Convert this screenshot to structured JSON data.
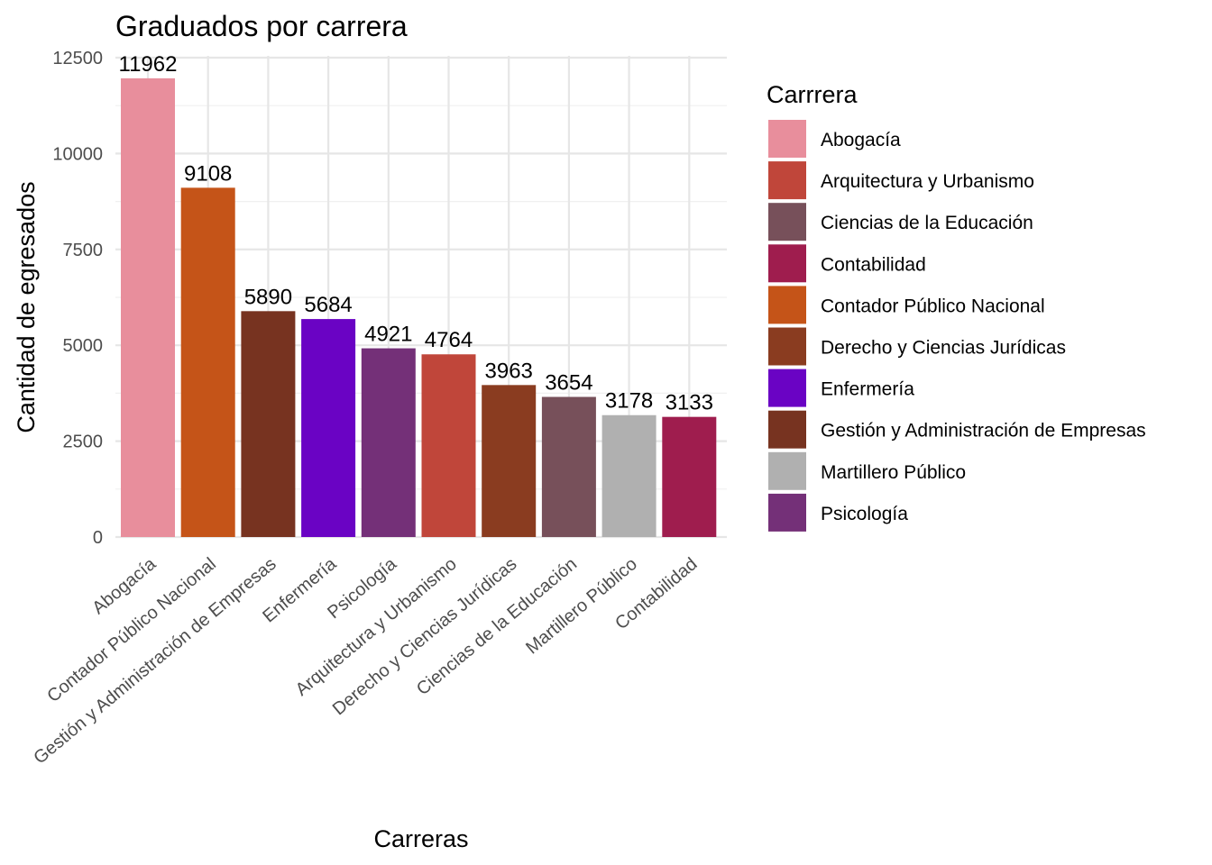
{
  "chart_data": {
    "type": "bar",
    "title": "Graduados por carrera",
    "xlabel": "Carreras",
    "ylabel": "Cantidad de egresados",
    "ylim": [
      0,
      12500
    ],
    "yticks": [
      0,
      2500,
      5000,
      7500,
      10000,
      12500
    ],
    "grid": true,
    "legend_position": "right",
    "legend_title": "Carrrera",
    "categories": [
      "Abogacía",
      "Contador Público Nacional",
      "Gestión y Administración de Empresas",
      "Enfermería",
      "Psicología",
      "Arquitectura y Urbanismo",
      "Derecho y Ciencias Jurídicas",
      "Ciencias de la Educación",
      "Martillero Público",
      "Contabilidad"
    ],
    "values": [
      11962,
      9108,
      5890,
      5684,
      4921,
      4764,
      3963,
      3654,
      3178,
      3133
    ],
    "colors": {
      "Abogacía": "#E88E9C",
      "Arquitectura y Urbanismo": "#C0463A",
      "Ciencias de la Educación": "#77505A",
      "Contabilidad": "#9F1D4E",
      "Contador Público Nacional": "#C55418",
      "Derecho y Ciencias Jurídicas": "#8A3C20",
      "Enfermería": "#6A03C4",
      "Gestión y Administración de Empresas": "#773320",
      "Martillero Público": "#B0B0B0",
      "Psicología": "#743078"
    },
    "legend_entries": [
      "Abogacía",
      "Arquitectura y Urbanismo",
      "Ciencias de la Educación",
      "Contabilidad",
      "Contador Público Nacional",
      "Derecho y Ciencias Jurídicas",
      "Enfermería",
      "Gestión y Administración de Empresas",
      "Martillero Público",
      "Psicología"
    ]
  }
}
